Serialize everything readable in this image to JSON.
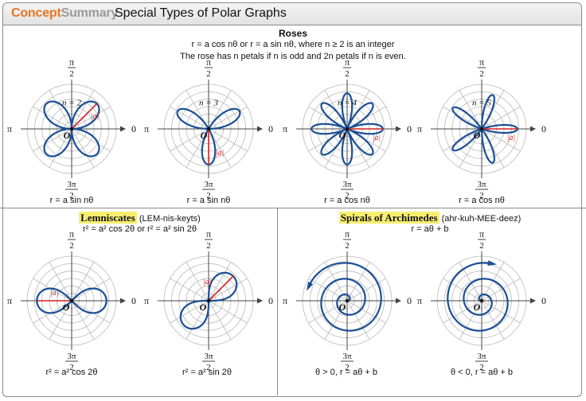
{
  "header": {
    "brand_concept": "Concept",
    "brand_summary": "Summary",
    "title": "Special Types of Polar Graphs"
  },
  "roses": {
    "heading": "Roses",
    "line1": "r = a cos nθ or r = a sin nθ, where n ≥ 2 is an integer",
    "line2": "The rose has n petals if n is odd and 2n petals if n is even.",
    "graphs": [
      {
        "n_label": "n = 2",
        "caption": "r = a sin nθ",
        "func": "sin",
        "n": 2
      },
      {
        "n_label": "n = 3",
        "caption": "r = a sin nθ",
        "func": "sin",
        "n": 3
      },
      {
        "n_label": "n = 4",
        "caption": "r = a cos nθ",
        "func": "cos",
        "n": 4
      },
      {
        "n_label": "n = 5",
        "caption": "r = a cos nθ",
        "func": "cos",
        "n": 5
      }
    ]
  },
  "lemniscates": {
    "name": "Lemniscates",
    "pronunciation": "(LEM-nis-keyts)",
    "equation": "r² = a² cos 2θ or r² = a² sin 2θ",
    "graphs": [
      {
        "caption": "r² = a² cos 2θ",
        "func": "cos"
      },
      {
        "caption": "r² = a² sin 2θ",
        "func": "sin"
      }
    ]
  },
  "spirals": {
    "name": "Spirals of Archimedes",
    "pronunciation": "(ahr-kuh-MEE-deez)",
    "equation": "r = aθ + b",
    "graphs": [
      {
        "caption": "θ > 0, r = aθ + b",
        "direction": "positive"
      },
      {
        "caption": "θ < 0, r = aθ + b",
        "direction": "negative"
      }
    ]
  },
  "axis_labels": {
    "top_num": "π",
    "top_den": "2",
    "left": "π",
    "right": "0",
    "bottom_num": "3π",
    "bottom_den": "2",
    "origin": "O",
    "a_label": "|a|"
  },
  "colors": {
    "curve": "#1b4f95",
    "a_segment": "#d42020",
    "grid": "#b9b9b9",
    "highlight": "#f7ee6e",
    "brand": "#e8731f"
  }
}
